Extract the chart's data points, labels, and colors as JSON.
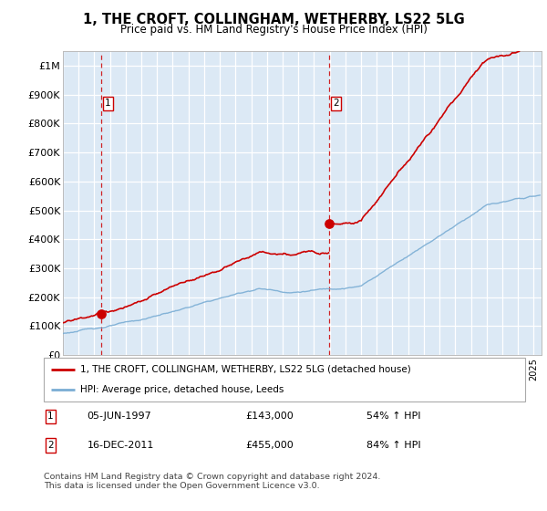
{
  "title": "1, THE CROFT, COLLINGHAM, WETHERBY, LS22 5LG",
  "subtitle": "Price paid vs. HM Land Registry's House Price Index (HPI)",
  "background_color": "#dce9f5",
  "plot_bg_color": "#dce9f5",
  "ylim": [
    0,
    1050000
  ],
  "yticks": [
    0,
    100000,
    200000,
    300000,
    400000,
    500000,
    600000,
    700000,
    800000,
    900000,
    1000000
  ],
  "ytick_labels": [
    "£0",
    "£100K",
    "£200K",
    "£300K",
    "£400K",
    "£500K",
    "£600K",
    "£700K",
    "£800K",
    "£900K",
    "£1M"
  ],
  "sale1_date_num": 1997.43,
  "sale1_price": 143000,
  "sale2_date_num": 2011.96,
  "sale2_price": 455000,
  "sale1_label": "1",
  "sale2_label": "2",
  "legend_property": "1, THE CROFT, COLLINGHAM, WETHERBY, LS22 5LG (detached house)",
  "legend_hpi": "HPI: Average price, detached house, Leeds",
  "annotation1": "05-JUN-1997",
  "annotation1_price": "£143,000",
  "annotation1_hpi": "54% ↑ HPI",
  "annotation2": "16-DEC-2011",
  "annotation2_price": "£455,000",
  "annotation2_hpi": "84% ↑ HPI",
  "footer": "Contains HM Land Registry data © Crown copyright and database right 2024.\nThis data is licensed under the Open Government Licence v3.0.",
  "property_line_color": "#cc0000",
  "hpi_line_color": "#7aadd4",
  "xlim_start": 1995.0,
  "xlim_end": 2025.5
}
